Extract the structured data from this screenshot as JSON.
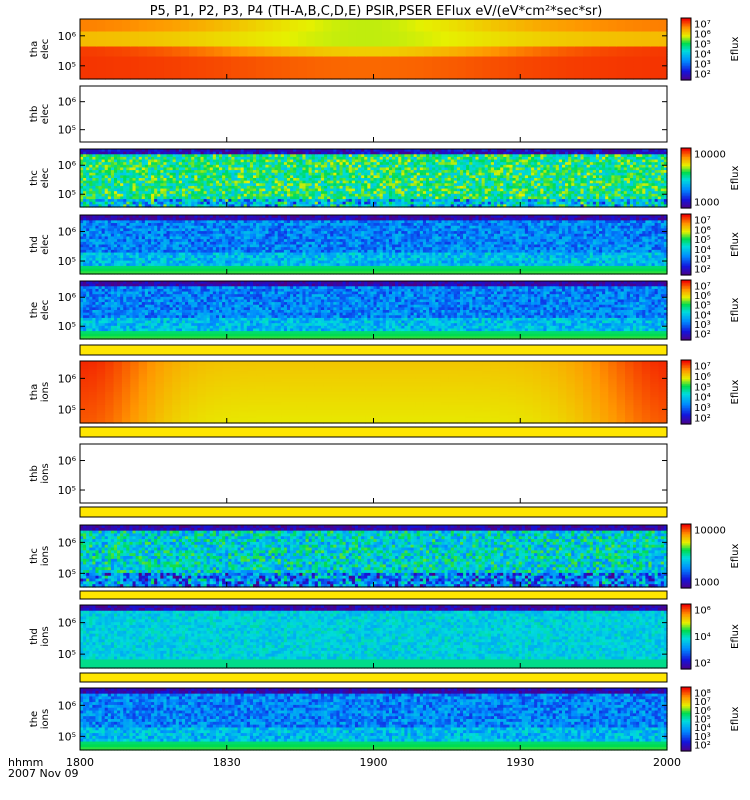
{
  "chart_data": {
    "type": "heatmap",
    "title": "P5, P1, P2, P3, P4 (TH-A,B,C,D,E) PSIR,PSER EFlux eV/(eV*cm²*sec*sr)",
    "x_ticks": [
      "1800",
      "1830",
      "1900",
      "1930",
      "2000"
    ],
    "x_corner_label": "hhmm",
    "date_label": "2007 Nov 09",
    "colors": {
      "separator_fill": "#ffe600",
      "axis": "#000000",
      "background": "#ffffff"
    },
    "panels": [
      {
        "probe": "tha",
        "species": "elec",
        "y_ticks": [
          "10⁶",
          "10⁵"
        ],
        "colorbar_label": "Eflux",
        "colorbar_ticks": [
          "10⁷",
          "10⁶",
          "10⁵",
          "10⁴",
          "10³",
          "10²"
        ],
        "colorbar_range": [
          100,
          10000000
        ],
        "pattern": "smooth-elec",
        "separator_after": false
      },
      {
        "probe": "thb",
        "species": "elec",
        "y_ticks": [
          "10⁶",
          "10⁵"
        ],
        "colorbar_label": "",
        "colorbar_ticks": [],
        "pattern": "empty",
        "separator_after": false
      },
      {
        "probe": "thc",
        "species": "elec",
        "y_ticks": [
          "10⁶",
          "10⁵"
        ],
        "colorbar_label": "Eflux",
        "colorbar_ticks": [
          "10000",
          "1000"
        ],
        "colorbar_range": [
          300,
          30000
        ],
        "pattern": "noisy-green",
        "separator_after": false
      },
      {
        "probe": "thd",
        "species": "elec",
        "y_ticks": [
          "10⁶",
          "10⁵"
        ],
        "colorbar_label": "Eflux",
        "colorbar_ticks": [
          "10⁷",
          "10⁶",
          "10⁵",
          "10⁴",
          "10³",
          "10²"
        ],
        "colorbar_range": [
          100,
          10000000
        ],
        "pattern": "noisy-blue",
        "separator_after": false
      },
      {
        "probe": "the",
        "species": "elec",
        "y_ticks": [
          "10⁶",
          "10⁵"
        ],
        "colorbar_label": "Eflux",
        "colorbar_ticks": [
          "10⁷",
          "10⁶",
          "10⁵",
          "10⁴",
          "10³",
          "10²"
        ],
        "colorbar_range": [
          100,
          10000000
        ],
        "pattern": "noisy-blue",
        "separator_after": true
      },
      {
        "probe": "tha",
        "species": "ions",
        "y_ticks": [
          "10⁶",
          "10⁵"
        ],
        "colorbar_label": "Eflux",
        "colorbar_ticks": [
          "10⁷",
          "10⁶",
          "10⁵",
          "10⁴",
          "10³",
          "10²"
        ],
        "colorbar_range": [
          100,
          10000000
        ],
        "pattern": "smooth-ions",
        "separator_after": true
      },
      {
        "probe": "thb",
        "species": "ions",
        "y_ticks": [
          "10⁶",
          "10⁵"
        ],
        "colorbar_label": "",
        "colorbar_ticks": [],
        "pattern": "empty",
        "separator_after": true
      },
      {
        "probe": "thc",
        "species": "ions",
        "y_ticks": [
          "10⁶",
          "10⁵"
        ],
        "colorbar_label": "Eflux",
        "colorbar_ticks": [
          "10000",
          "1000"
        ],
        "colorbar_range": [
          300,
          30000
        ],
        "pattern": "noisy-cyan",
        "separator_after": true
      },
      {
        "probe": "thd",
        "species": "ions",
        "y_ticks": [
          "10⁶",
          "10⁵"
        ],
        "colorbar_label": "Eflux",
        "colorbar_ticks": [
          "10⁶",
          "10⁴",
          "10²"
        ],
        "colorbar_range": [
          100,
          1000000
        ],
        "pattern": "noisy-cyan-light",
        "separator_after": true
      },
      {
        "probe": "the",
        "species": "ions",
        "y_ticks": [
          "10⁶",
          "10⁵"
        ],
        "colorbar_label": "Eflux",
        "colorbar_ticks": [
          "10⁸",
          "10⁷",
          "10⁶",
          "10⁵",
          "10⁴",
          "10³",
          "10²"
        ],
        "colorbar_range": [
          100,
          100000000
        ],
        "pattern": "noisy-blue",
        "separator_after": false
      }
    ]
  }
}
